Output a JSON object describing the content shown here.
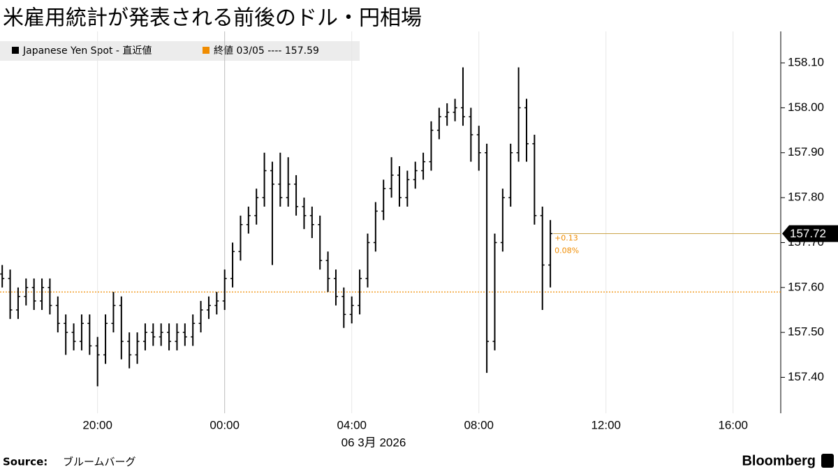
{
  "chart_data": {
    "type": "ohlc",
    "title": "米雇用統計が発表される前後のドル・円相場",
    "x_label": "06 3月 2026",
    "source_label": "Source:",
    "source": "ブルームバーグ",
    "brand": "Bloomberg",
    "xlim": [
      -7.07,
      17.5
    ],
    "xticks": [
      {
        "value": -4,
        "label": "20:00"
      },
      {
        "value": 0,
        "label": "00:00"
      },
      {
        "value": 4,
        "label": "04:00"
      },
      {
        "value": 8,
        "label": "08:00"
      },
      {
        "value": 12,
        "label": "12:00"
      },
      {
        "value": 16,
        "label": "16:00"
      }
    ],
    "ylim": [
      157.32,
      158.17
    ],
    "yticks": [
      {
        "value": 157.4,
        "label": "157.40"
      },
      {
        "value": 157.5,
        "label": "157.50"
      },
      {
        "value": 157.6,
        "label": "157.60"
      },
      {
        "value": 157.7,
        "label": "157.70"
      },
      {
        "value": 157.8,
        "label": "157.80"
      },
      {
        "value": 157.9,
        "label": "157.90"
      },
      {
        "value": 158,
        "label": "158.00"
      },
      {
        "value": 158.1,
        "label": "158.10"
      }
    ],
    "grid": true,
    "series": [
      {
        "name": "Japanese Yen Spot - 直近値",
        "color": "#000000",
        "x": [
          -7,
          -6.75,
          -6.5,
          -6.25,
          -6,
          -5.75,
          -5.5,
          -5.25,
          -5,
          -4.75,
          -4.5,
          -4.25,
          -4,
          -3.75,
          -3.5,
          -3.25,
          -3,
          -2.75,
          -2.5,
          -2.25,
          -2,
          -1.75,
          -1.5,
          -1.25,
          -1,
          -0.75,
          -0.5,
          -0.25,
          0,
          0.25,
          0.5,
          0.75,
          1,
          1.25,
          1.5,
          1.75,
          2,
          2.25,
          2.5,
          2.75,
          3,
          3.25,
          3.5,
          3.75,
          4,
          4.25,
          4.5,
          4.75,
          5,
          5.25,
          5.5,
          5.75,
          6,
          6.25,
          6.5,
          6.75,
          7,
          7.25,
          7.5,
          7.75,
          8,
          8.25,
          8.5,
          8.75,
          9,
          9.25,
          9.5,
          9.75,
          10,
          10.25
        ],
        "open": [
          157.63,
          157.62,
          157.55,
          157.58,
          157.6,
          157.57,
          157.6,
          157.56,
          157.52,
          157.5,
          157.48,
          157.52,
          157.47,
          157.45,
          157.52,
          157.56,
          157.48,
          157.45,
          157.48,
          157.5,
          157.49,
          157.5,
          157.48,
          157.5,
          157.49,
          157.52,
          157.55,
          157.56,
          157.57,
          157.62,
          157.68,
          157.74,
          157.76,
          157.8,
          157.86,
          157.83,
          157.8,
          157.83,
          157.78,
          157.76,
          157.74,
          157.66,
          157.62,
          157.58,
          157.54,
          157.56,
          157.62,
          157.7,
          157.77,
          157.82,
          157.85,
          157.8,
          157.84,
          157.86,
          157.88,
          157.95,
          157.98,
          157.99,
          158.0,
          157.98,
          157.94,
          157.9,
          157.48,
          157.7,
          157.8,
          157.9,
          158.0,
          157.92,
          157.76,
          157.65
        ],
        "high": [
          157.65,
          157.64,
          157.6,
          157.62,
          157.62,
          157.62,
          157.62,
          157.58,
          157.54,
          157.52,
          157.54,
          157.54,
          157.49,
          157.54,
          157.59,
          157.58,
          157.5,
          157.5,
          157.52,
          157.52,
          157.52,
          157.52,
          157.52,
          157.52,
          157.54,
          157.57,
          157.58,
          157.59,
          157.64,
          157.7,
          157.76,
          157.78,
          157.82,
          157.9,
          157.88,
          157.9,
          157.89,
          157.85,
          157.8,
          157.78,
          157.76,
          157.68,
          157.64,
          157.6,
          157.58,
          157.64,
          157.72,
          157.79,
          157.84,
          157.89,
          157.87,
          157.86,
          157.88,
          157.9,
          157.97,
          158.0,
          158.01,
          158.02,
          158.09,
          158.0,
          157.96,
          157.92,
          157.72,
          157.82,
          157.92,
          158.09,
          158.02,
          157.94,
          157.78,
          157.75
        ],
        "low": [
          157.6,
          157.53,
          157.53,
          157.56,
          157.55,
          157.55,
          157.54,
          157.5,
          157.45,
          157.46,
          157.46,
          157.45,
          157.38,
          157.43,
          157.5,
          157.44,
          157.42,
          157.43,
          157.46,
          157.47,
          157.47,
          157.46,
          157.46,
          157.47,
          157.47,
          157.5,
          157.53,
          157.54,
          157.55,
          157.6,
          157.66,
          157.72,
          157.74,
          157.78,
          157.65,
          157.78,
          157.78,
          157.76,
          157.73,
          157.71,
          157.64,
          157.59,
          157.56,
          157.51,
          157.52,
          157.54,
          157.6,
          157.68,
          157.75,
          157.8,
          157.78,
          157.78,
          157.82,
          157.84,
          157.86,
          157.93,
          157.96,
          157.97,
          157.96,
          157.88,
          157.86,
          157.41,
          157.46,
          157.68,
          157.78,
          157.88,
          157.88,
          157.74,
          157.55,
          157.6
        ],
        "close": [
          157.62,
          157.55,
          157.58,
          157.6,
          157.57,
          157.6,
          157.56,
          157.52,
          157.5,
          157.48,
          157.52,
          157.47,
          157.45,
          157.52,
          157.56,
          157.48,
          157.45,
          157.48,
          157.5,
          157.49,
          157.5,
          157.48,
          157.5,
          157.49,
          157.52,
          157.55,
          157.56,
          157.57,
          157.62,
          157.68,
          157.74,
          157.76,
          157.8,
          157.86,
          157.83,
          157.8,
          157.83,
          157.78,
          157.76,
          157.74,
          157.66,
          157.62,
          157.58,
          157.54,
          157.56,
          157.62,
          157.7,
          157.77,
          157.82,
          157.85,
          157.8,
          157.84,
          157.86,
          157.88,
          157.95,
          157.98,
          157.99,
          158.0,
          157.98,
          157.94,
          157.9,
          157.48,
          157.7,
          157.8,
          157.9,
          158.0,
          157.92,
          157.76,
          157.65,
          157.72
        ]
      }
    ],
    "reference": {
      "name": "終値 03/05 ---- 157.59",
      "value": 157.59,
      "color": "#f08c00"
    },
    "last_price": {
      "value": 157.72,
      "color": "#c8a040",
      "change": "+0.13",
      "change_pct": "0.08%"
    }
  }
}
